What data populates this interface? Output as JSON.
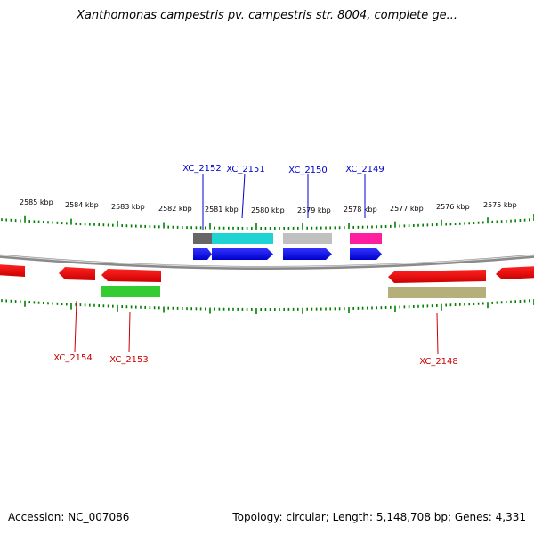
{
  "title": "Xanthomonas campestris pv. campestris str. 8004, complete ge...",
  "footer": {
    "accession": "Accession: NC_007086",
    "summary": "Topology: circular; Length: 5,148,708 bp; Genes: 4,331"
  },
  "scale": {
    "kbp_labels": [
      "2585 kbp",
      "2584 kbp",
      "2583 kbp",
      "2582 kbp",
      "2581 kbp",
      "2580 kbp",
      "2579 kbp",
      "2578 kbp",
      "2577 kbp",
      "2576 kbp",
      "2575 kbp"
    ]
  },
  "colors": {
    "forward_label": "#0000cc",
    "reverse_label": "#cc0000",
    "tick": "#008000",
    "backbone": "#888888",
    "cds_forward": "#0000ff",
    "cds_reverse": "#ff0000"
  },
  "genes_forward": [
    {
      "name": "XC_2152",
      "feature_color": "#666666"
    },
    {
      "name": "XC_2151",
      "feature_color": "#1fd3d3"
    },
    {
      "name": "XC_2150",
      "feature_color": "#c0c0c0"
    },
    {
      "name": "XC_2149",
      "feature_color": "#ff1e9e"
    }
  ],
  "genes_reverse": [
    {
      "name": "XC_2154",
      "feature_color": null
    },
    {
      "name": "XC_2153",
      "feature_color": "#33cc33"
    },
    {
      "name": "XC_2148",
      "feature_color": "#b5b07a"
    }
  ]
}
